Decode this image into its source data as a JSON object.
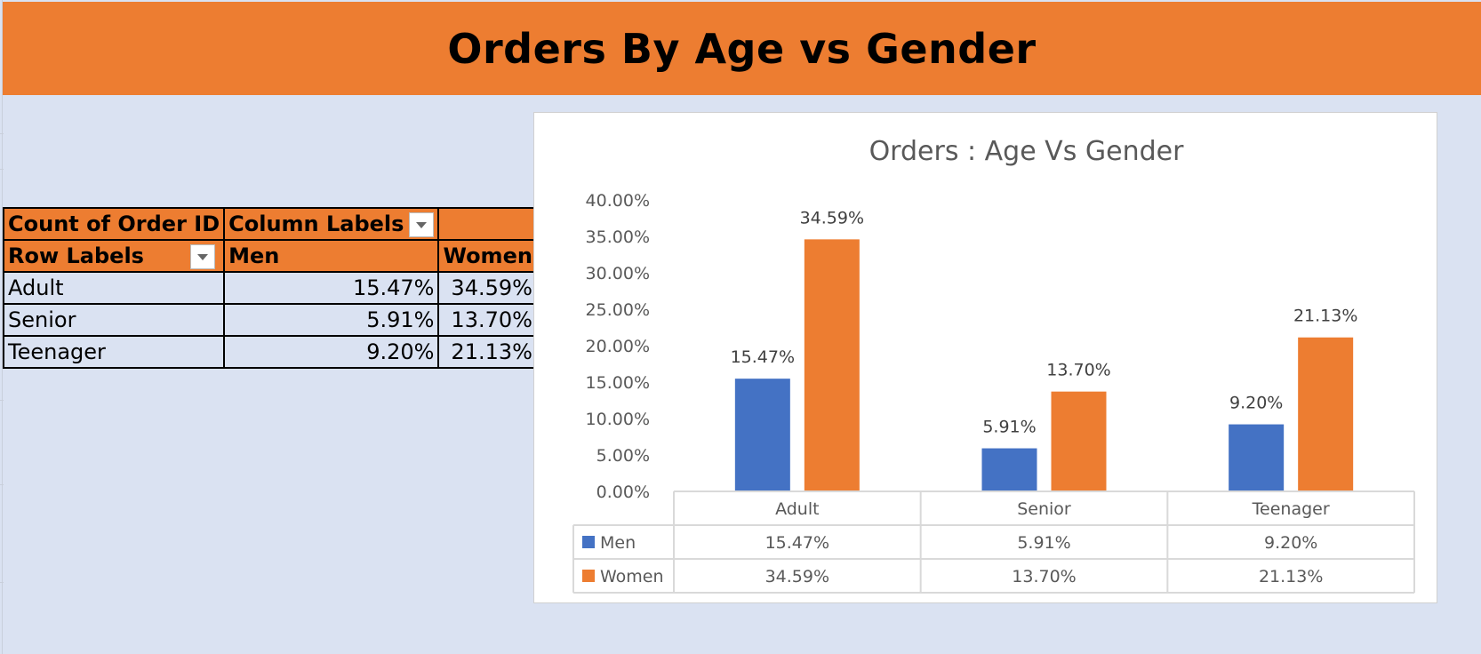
{
  "banner": {
    "title": "Orders By Age vs Gender"
  },
  "pivot": {
    "header_row1": [
      "Count of Order ID",
      "Column Labels",
      ""
    ],
    "header_row2": [
      "Row Labels",
      "Men",
      "Women"
    ],
    "rows": [
      {
        "label": "Adult",
        "men": "15.47%",
        "women": "34.59%"
      },
      {
        "label": "Senior",
        "men": "5.91%",
        "women": "13.70%"
      },
      {
        "label": "Teenager",
        "men": "9.20%",
        "women": "21.13%"
      }
    ]
  },
  "chart_data": {
    "type": "bar",
    "title": "Orders : Age Vs Gender",
    "categories": [
      "Adult",
      "Senior",
      "Teenager"
    ],
    "series": [
      {
        "name": "Men",
        "values": [
          15.47,
          5.91,
          9.2
        ],
        "labels": [
          "15.47%",
          "5.91%",
          "9.20%"
        ],
        "color": "#4472c4"
      },
      {
        "name": "Women",
        "values": [
          34.59,
          13.7,
          21.13
        ],
        "labels": [
          "34.59%",
          "13.70%",
          "21.13%"
        ],
        "color": "#ed7d31"
      }
    ],
    "y_ticks": [
      "0.00%",
      "5.00%",
      "10.00%",
      "15.00%",
      "20.00%",
      "25.00%",
      "30.00%",
      "35.00%",
      "40.00%"
    ],
    "ylim": [
      0,
      40
    ],
    "data_table": true,
    "grid": false
  }
}
